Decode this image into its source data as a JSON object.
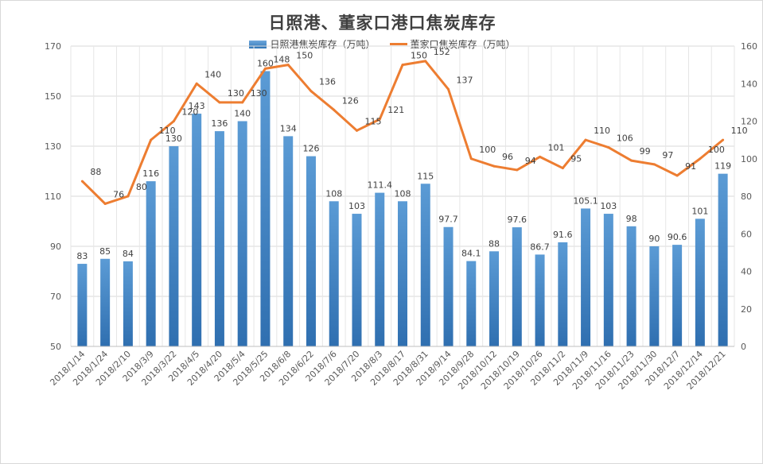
{
  "chart_data": {
    "type": "bar",
    "title": "日照港、董家口港口焦炭库存",
    "categories": [
      "2018/1/14",
      "2018/1/24",
      "2018/2/10",
      "2018/3/9",
      "2018/3/22",
      "2018/4/5",
      "2018/4/20",
      "2018/5/4",
      "2018/5/25",
      "2018/6/8",
      "2018/6/22",
      "2018/7/6",
      "2018/7/20",
      "2018/8/3",
      "2018/8/17",
      "2018/8/31",
      "2018/9/14",
      "2018/9/28",
      "2018/10/12",
      "2018/10/19",
      "2018/10/26",
      "2018/11/2",
      "2018/11/9",
      "2018/11/16",
      "2018/11/23",
      "2018/11/30",
      "2018/12/7",
      "2018/12/14",
      "2018/12/21"
    ],
    "series": [
      {
        "name": "日照港焦炭库存（万吨）",
        "type": "bar",
        "axis": "left",
        "color": "#3a7fc4",
        "values": [
          83,
          85,
          84,
          116,
          130,
          143,
          136,
          140,
          160,
          134,
          126,
          108,
          103,
          111.4,
          108,
          115,
          97.7,
          84.1,
          88,
          97.6,
          86.7,
          91.6,
          105.1,
          103,
          98,
          90,
          90.6,
          101,
          119
        ],
        "labels": [
          "83",
          "85",
          "84",
          "116",
          "130",
          "143",
          "136",
          "140",
          "160",
          "134",
          "126",
          "108",
          "103",
          "111.4",
          "108",
          "115",
          "97.7",
          "84.1",
          "88",
          "97.6",
          "86.7",
          "91.6",
          "105.1",
          "103",
          "98",
          "90",
          "90.6",
          "101",
          "119"
        ]
      },
      {
        "name": "董家口焦炭库存（万吨）",
        "type": "line",
        "axis": "right",
        "color": "#ed7d31",
        "values": [
          88,
          76,
          80,
          110,
          120,
          140,
          130,
          130,
          148,
          150,
          136,
          126,
          115,
          121,
          150,
          152,
          137,
          100,
          96,
          94,
          101,
          95,
          110,
          106,
          99,
          97,
          91,
          100,
          110
        ],
        "labels": [
          "88",
          "76",
          "80",
          "110",
          "120",
          "140",
          "130",
          "130",
          "148",
          "150",
          "136",
          "126",
          "115",
          "121",
          "150",
          "152",
          "137",
          "100",
          "96",
          "94",
          "101",
          "95",
          "110",
          "106",
          "99",
          "97",
          "91",
          "100",
          "110"
        ]
      }
    ],
    "y_left": {
      "min": 50,
      "max": 170,
      "ticks": [
        "50",
        "70",
        "90",
        "110",
        "130",
        "150",
        "170"
      ]
    },
    "y_right": {
      "min": 0,
      "max": 160,
      "ticks": [
        "0",
        "20",
        "40",
        "60",
        "80",
        "100",
        "120",
        "140",
        "160"
      ]
    },
    "grid": true,
    "legend_position": "top"
  }
}
